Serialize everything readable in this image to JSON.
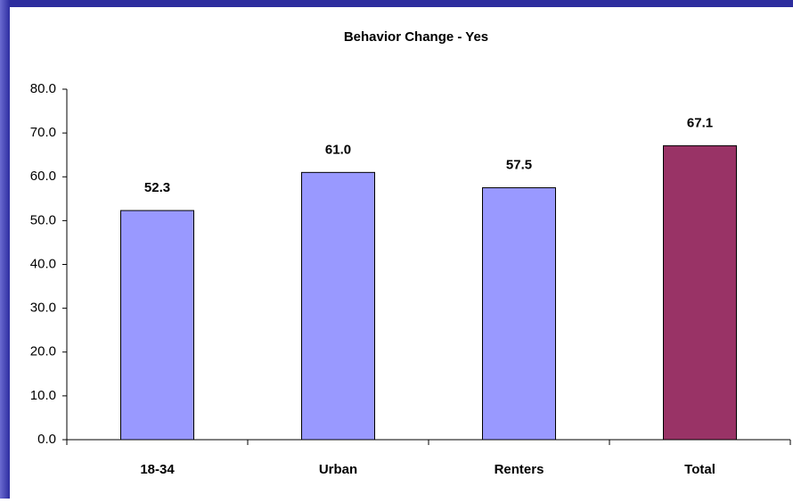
{
  "chart_data": {
    "type": "bar",
    "title": "Behavior Change - Yes",
    "categories": [
      "18-34",
      "Urban",
      "Renters",
      "Total"
    ],
    "values": [
      52.3,
      61.0,
      57.5,
      67.1
    ],
    "value_labels": [
      "52.3",
      "61.0",
      "57.5",
      "67.1"
    ],
    "colors": [
      "#9999ff",
      "#9999ff",
      "#9999ff",
      "#993366"
    ],
    "ylim": [
      0,
      80
    ],
    "yticks": [
      {
        "value": 0,
        "label": "0.0"
      },
      {
        "value": 10,
        "label": "10.0"
      },
      {
        "value": 20,
        "label": "20.0"
      },
      {
        "value": 30,
        "label": "30.0"
      },
      {
        "value": 40,
        "label": "40.0"
      },
      {
        "value": 50,
        "label": "50.0"
      },
      {
        "value": 60,
        "label": "60.0"
      },
      {
        "value": 70,
        "label": "70.0"
      },
      {
        "value": 80,
        "label": "80.0"
      }
    ],
    "grid": false
  }
}
